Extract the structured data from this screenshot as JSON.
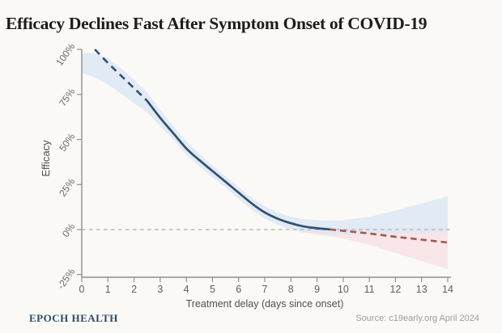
{
  "page": {
    "background": "#faf9f6"
  },
  "header": {
    "title": "Efficacy Declines Fast After Symptom Onset of COVID-19"
  },
  "footer": {
    "brand": "EPOCH HEALTH",
    "source": "Source: c19early.org April 2024"
  },
  "colors": {
    "line_navy": "#32506e",
    "line_red": "#a6584b",
    "band_blue": "#dce8f4",
    "band_pink": "#f8e4e6",
    "zero_line": "#b8b8b8",
    "axis": "#8f8f8f",
    "tick_label": "#6b6b6b",
    "axis_label": "#4f4f4f"
  },
  "chart_data": {
    "type": "line",
    "title": "Efficacy Declines Fast After Symptom Onset of COVID-19",
    "xlabel": "Treatment delay (days since onset)",
    "ylabel": "Efficacy",
    "xlim": [
      0,
      14
    ],
    "ylim": [
      -28,
      102
    ],
    "grid": false,
    "legend": "none",
    "x_ticks": [
      0,
      1,
      2,
      3,
      4,
      5,
      6,
      7,
      8,
      9,
      10,
      11,
      12,
      13,
      14
    ],
    "y_ticks": [
      {
        "value": 100,
        "label": "100%"
      },
      {
        "value": 75,
        "label": "75%"
      },
      {
        "value": 50,
        "label": "50%"
      },
      {
        "value": 25,
        "label": "25%"
      },
      {
        "value": 0,
        "label": "0%"
      },
      {
        "value": -25,
        "label": "-25%"
      }
    ],
    "zero_line": {
      "value": 0,
      "style": "dashed",
      "color": "#b8b8b8"
    },
    "series": [
      {
        "name": "efficacy-extrapolated-early",
        "style": "dashed",
        "color": "#32506e",
        "points": [
          [
            0.5,
            100
          ],
          [
            1,
            92.5
          ],
          [
            1.5,
            85.5
          ],
          [
            2,
            78.5
          ],
          [
            2.5,
            71.5
          ]
        ]
      },
      {
        "name": "efficacy-fit",
        "style": "solid",
        "color": "#32506e",
        "points": [
          [
            2.5,
            71.5
          ],
          [
            3,
            62
          ],
          [
            3.5,
            53.5
          ],
          [
            4,
            45
          ],
          [
            4.5,
            38.5
          ],
          [
            5,
            32.5
          ],
          [
            5.5,
            26.5
          ],
          [
            6,
            20.5
          ],
          [
            6.5,
            14.5
          ],
          [
            7,
            9.5
          ],
          [
            7.5,
            6
          ],
          [
            8,
            3.5
          ],
          [
            8.5,
            1.7
          ],
          [
            9,
            0.7
          ],
          [
            9.5,
            0.1
          ]
        ]
      },
      {
        "name": "efficacy-extrapolated-late",
        "style": "dashed",
        "color": "#a6584b",
        "points": [
          [
            9.5,
            0.1
          ],
          [
            10,
            -0.7
          ],
          [
            11,
            -2.2
          ],
          [
            12,
            -4
          ],
          [
            13,
            -5.6
          ],
          [
            14,
            -7.2
          ]
        ]
      }
    ],
    "bands": [
      {
        "name": "confidence-band-pink",
        "color": "#f8e4e6",
        "opacity": 0.95,
        "upper": [
          [
            8.3,
            -0.3
          ],
          [
            9,
            0.2
          ],
          [
            9.5,
            0.4
          ],
          [
            10,
            0.6
          ],
          [
            11,
            0.8
          ],
          [
            12,
            1.0
          ],
          [
            13,
            1.1
          ],
          [
            14,
            1.2
          ]
        ],
        "lower": [
          [
            8.3,
            -1.3
          ],
          [
            9,
            -2.8
          ],
          [
            9.5,
            -3.7
          ],
          [
            10,
            -5
          ],
          [
            11,
            -8.5
          ],
          [
            12,
            -13
          ],
          [
            13,
            -17.5
          ],
          [
            14,
            -22
          ]
        ]
      },
      {
        "name": "confidence-band-blue",
        "color": "#dce8f4",
        "opacity": 0.85,
        "upper": [
          [
            0,
            98
          ],
          [
            0.5,
            98
          ],
          [
            1,
            95
          ],
          [
            1.5,
            89.5
          ],
          [
            2,
            83
          ],
          [
            2.5,
            76
          ],
          [
            3,
            66.5
          ],
          [
            3.5,
            57.5
          ],
          [
            4,
            49
          ],
          [
            4.5,
            42
          ],
          [
            5,
            35.5
          ],
          [
            5.5,
            29.5
          ],
          [
            6,
            23.5
          ],
          [
            6.5,
            17.5
          ],
          [
            7,
            13
          ],
          [
            7.5,
            9.5
          ],
          [
            8,
            7
          ],
          [
            8.5,
            5.8
          ],
          [
            9,
            5.2
          ],
          [
            9.5,
            5
          ],
          [
            10,
            5.2
          ],
          [
            11,
            7
          ],
          [
            12,
            10.5
          ],
          [
            13,
            14.5
          ],
          [
            14,
            18.5
          ]
        ],
        "lower": [
          [
            0,
            87
          ],
          [
            0.5,
            84.5
          ],
          [
            1,
            80.5
          ],
          [
            1.5,
            75.5
          ],
          [
            2,
            70
          ],
          [
            2.5,
            65
          ],
          [
            3,
            57.5
          ],
          [
            3.5,
            50
          ],
          [
            4,
            41.5
          ],
          [
            4.5,
            35
          ],
          [
            5,
            29
          ],
          [
            5.5,
            23.5
          ],
          [
            6,
            17
          ],
          [
            6.5,
            11
          ],
          [
            7,
            6
          ],
          [
            7.5,
            2.5
          ],
          [
            8,
            0
          ],
          [
            8.5,
            -1.3
          ],
          [
            9,
            -2
          ],
          [
            9.5,
            -2.4
          ],
          [
            10,
            -2.6
          ],
          [
            11,
            -2.6
          ],
          [
            12,
            -2.3
          ],
          [
            13,
            -1.8
          ],
          [
            14,
            -1.5
          ]
        ]
      }
    ]
  }
}
